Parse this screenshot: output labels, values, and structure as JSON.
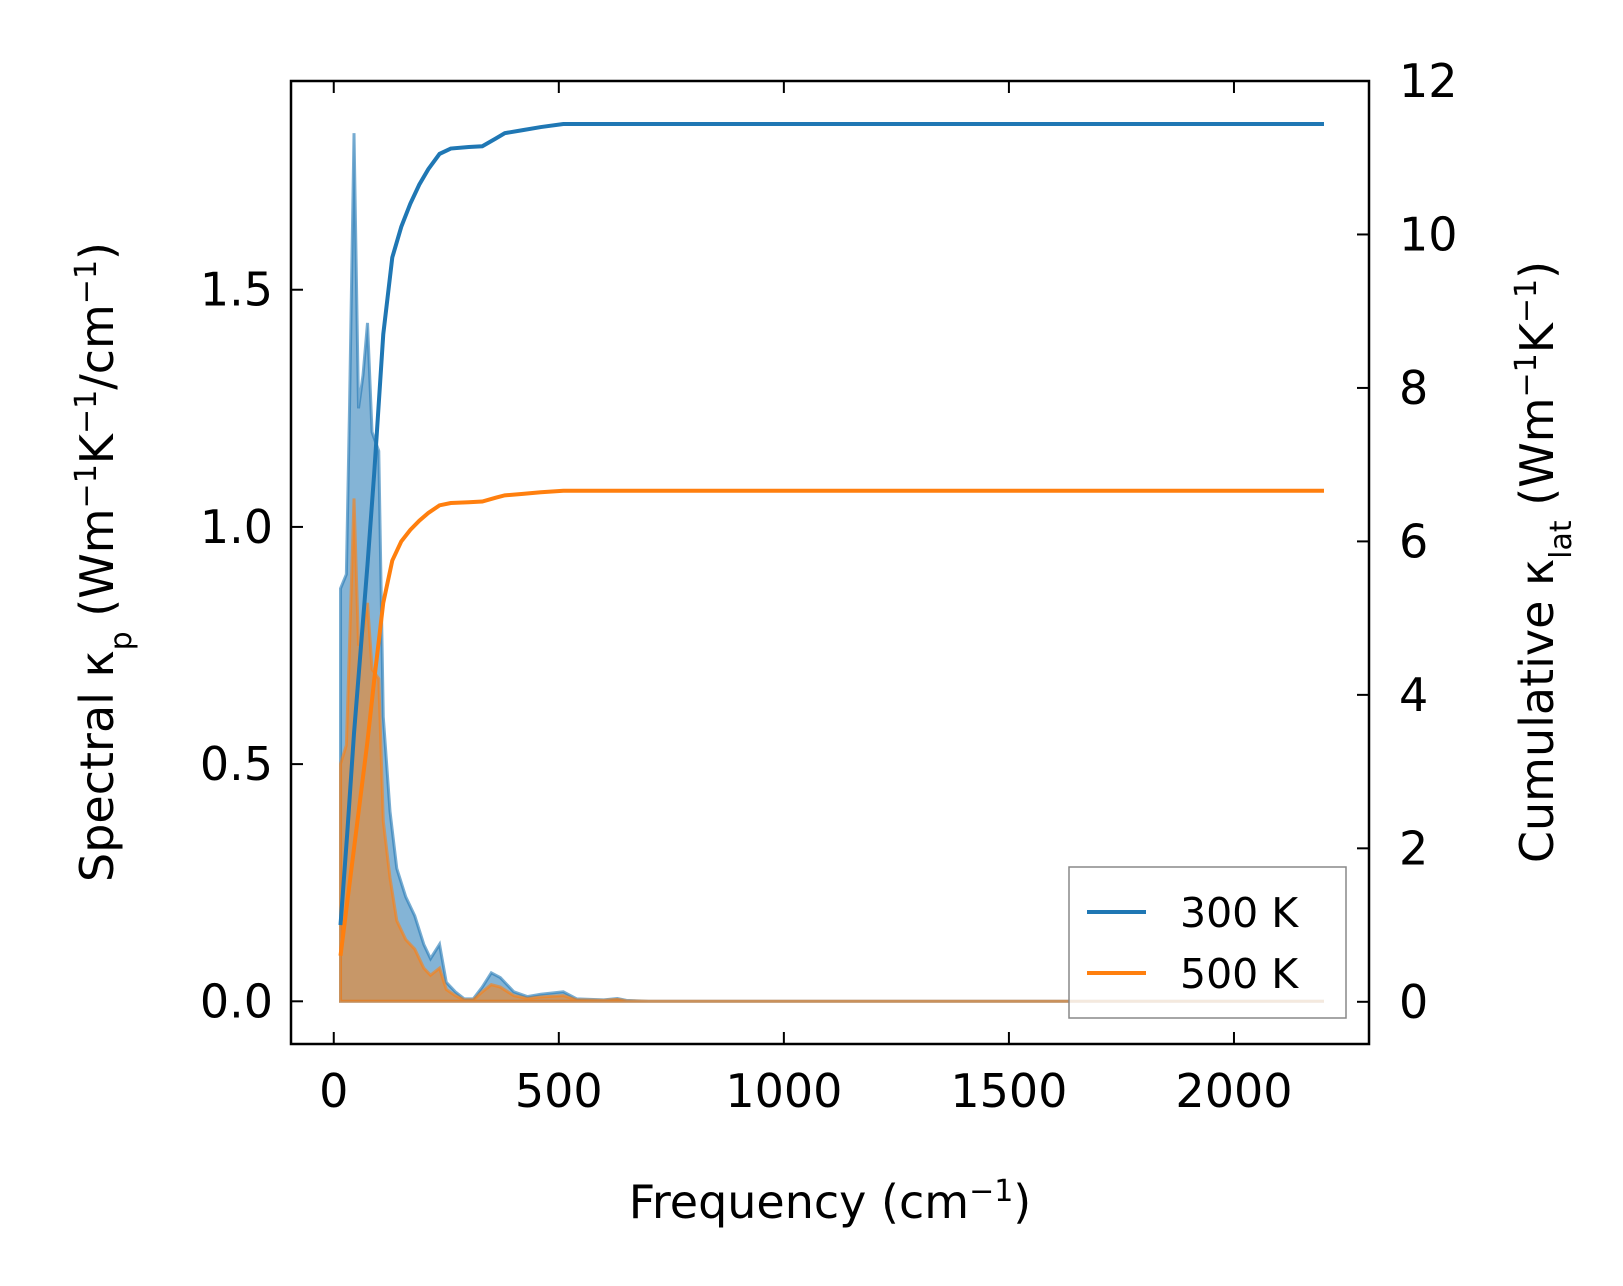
{
  "chart_data": {
    "type": "line",
    "x_axis": {
      "label_main": "Frequency (cm",
      "label_sup": "−1",
      "label_end": ")",
      "range": [
        -95,
        2300
      ],
      "ticks": [
        0,
        500,
        1000,
        1500,
        2000
      ],
      "tick_labels": [
        "0",
        "500",
        "1000",
        "1500",
        "2000"
      ]
    },
    "y_left": {
      "label_main": "Spectral κ",
      "label_sub": "p",
      "label_rest": " (Wm",
      "label_sup1": "−1",
      "label_k": "K",
      "label_sup2": "−1",
      "label_cm": "/cm",
      "label_sup3": "−1",
      "label_end": ")",
      "range": [
        -0.09,
        1.94
      ],
      "ticks": [
        0.0,
        0.5,
        1.0,
        1.5
      ],
      "tick_labels": [
        "0.0",
        "0.5",
        "1.0",
        "1.5"
      ]
    },
    "y_right": {
      "label_main": "Cumulative κ",
      "label_sub": "lat",
      "label_rest": " (Wm",
      "label_sup1": "−1",
      "label_k": "K",
      "label_sup2": "−1",
      "label_end": ")",
      "range": [
        -0.55,
        12.0
      ],
      "ticks": [
        0,
        2,
        4,
        6,
        8,
        10,
        12
      ],
      "tick_labels": [
        "0",
        "2",
        "4",
        "6",
        "8",
        "10",
        "12"
      ]
    },
    "legend": {
      "placement": "lower-right",
      "entries": [
        "300 K",
        "500 K"
      ]
    },
    "series": [
      {
        "name": "300 K",
        "color": "#1f77b4",
        "spectral": [
          [
            15,
            0.87
          ],
          [
            28,
            0.9
          ],
          [
            35,
            1.25
          ],
          [
            45,
            1.83
          ],
          [
            55,
            1.25
          ],
          [
            65,
            1.32
          ],
          [
            75,
            1.43
          ],
          [
            85,
            1.2
          ],
          [
            100,
            1.16
          ],
          [
            110,
            0.6
          ],
          [
            125,
            0.4
          ],
          [
            140,
            0.28
          ],
          [
            160,
            0.22
          ],
          [
            180,
            0.18
          ],
          [
            200,
            0.12
          ],
          [
            215,
            0.09
          ],
          [
            235,
            0.12
          ],
          [
            250,
            0.04
          ],
          [
            270,
            0.02
          ],
          [
            290,
            0.005
          ],
          [
            310,
            0.005
          ],
          [
            330,
            0.03
          ],
          [
            350,
            0.06
          ],
          [
            370,
            0.05
          ],
          [
            400,
            0.02
          ],
          [
            430,
            0.01
          ],
          [
            460,
            0.015
          ],
          [
            510,
            0.02
          ],
          [
            540,
            0.005
          ],
          [
            600,
            0.003
          ],
          [
            630,
            0.006
          ],
          [
            650,
            0.002
          ],
          [
            700,
            0.0
          ],
          [
            1000,
            0.0
          ],
          [
            1500,
            0.0
          ],
          [
            2000,
            0.0
          ],
          [
            2200,
            0.0
          ]
        ],
        "cumulative": [
          [
            15,
            1.0
          ],
          [
            30,
            2.2
          ],
          [
            45,
            3.5
          ],
          [
            60,
            4.6
          ],
          [
            75,
            5.7
          ],
          [
            90,
            6.9
          ],
          [
            110,
            8.7
          ],
          [
            130,
            9.7
          ],
          [
            150,
            10.1
          ],
          [
            170,
            10.4
          ],
          [
            190,
            10.65
          ],
          [
            210,
            10.85
          ],
          [
            235,
            11.05
          ],
          [
            260,
            11.12
          ],
          [
            300,
            11.14
          ],
          [
            330,
            11.15
          ],
          [
            360,
            11.25
          ],
          [
            380,
            11.32
          ],
          [
            420,
            11.36
          ],
          [
            460,
            11.4
          ],
          [
            510,
            11.44
          ],
          [
            600,
            11.44
          ],
          [
            1000,
            11.44
          ],
          [
            1500,
            11.44
          ],
          [
            2200,
            11.44
          ]
        ]
      },
      {
        "name": "500 K",
        "color": "#ff7f0e",
        "spectral": [
          [
            15,
            0.5
          ],
          [
            28,
            0.54
          ],
          [
            35,
            0.75
          ],
          [
            45,
            1.06
          ],
          [
            55,
            0.75
          ],
          [
            65,
            0.78
          ],
          [
            75,
            0.84
          ],
          [
            85,
            0.7
          ],
          [
            100,
            0.68
          ],
          [
            110,
            0.38
          ],
          [
            125,
            0.26
          ],
          [
            140,
            0.17
          ],
          [
            160,
            0.13
          ],
          [
            180,
            0.11
          ],
          [
            200,
            0.07
          ],
          [
            215,
            0.055
          ],
          [
            235,
            0.07
          ],
          [
            250,
            0.025
          ],
          [
            270,
            0.012
          ],
          [
            290,
            0.003
          ],
          [
            310,
            0.003
          ],
          [
            330,
            0.02
          ],
          [
            350,
            0.035
          ],
          [
            370,
            0.03
          ],
          [
            400,
            0.012
          ],
          [
            430,
            0.006
          ],
          [
            460,
            0.009
          ],
          [
            510,
            0.012
          ],
          [
            540,
            0.003
          ],
          [
            600,
            0.002
          ],
          [
            630,
            0.004
          ],
          [
            650,
            0.001
          ],
          [
            700,
            0.0
          ],
          [
            1000,
            0.0
          ],
          [
            1500,
            0.0
          ],
          [
            2000,
            0.0
          ],
          [
            2200,
            0.0
          ]
        ],
        "cumulative": [
          [
            15,
            0.6
          ],
          [
            30,
            1.3
          ],
          [
            45,
            2.0
          ],
          [
            60,
            2.7
          ],
          [
            75,
            3.4
          ],
          [
            90,
            4.2
          ],
          [
            110,
            5.2
          ],
          [
            130,
            5.75
          ],
          [
            150,
            6.0
          ],
          [
            170,
            6.15
          ],
          [
            190,
            6.27
          ],
          [
            210,
            6.37
          ],
          [
            235,
            6.47
          ],
          [
            260,
            6.5
          ],
          [
            300,
            6.51
          ],
          [
            330,
            6.52
          ],
          [
            360,
            6.57
          ],
          [
            380,
            6.6
          ],
          [
            420,
            6.62
          ],
          [
            460,
            6.64
          ],
          [
            510,
            6.66
          ],
          [
            600,
            6.66
          ],
          [
            1000,
            6.66
          ],
          [
            1500,
            6.66
          ],
          [
            2200,
            6.66
          ]
        ]
      }
    ]
  }
}
